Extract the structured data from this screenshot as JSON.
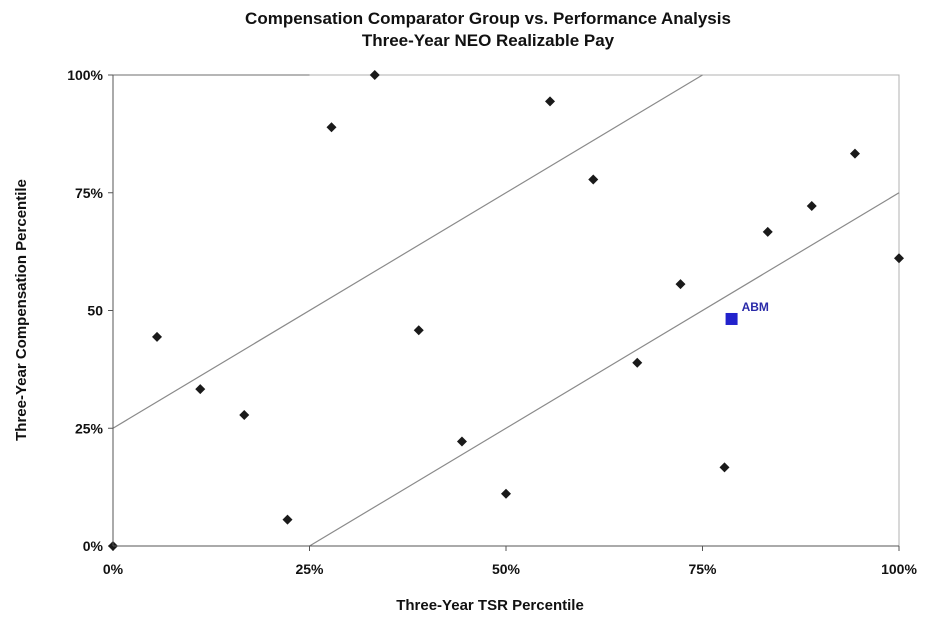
{
  "chart_data": {
    "type": "scatter",
    "title": "Compensation Comparator Group vs. Performance Analysis",
    "subtitle": "Three-Year NEO Realizable  Pay",
    "xlabel": "Three-Year TSR Percentile",
    "ylabel": "Three-Year Compensation Percentile",
    "xlim": [
      0,
      100
    ],
    "ylim": [
      0,
      100
    ],
    "x_ticks": [
      {
        "value": 0,
        "label": "0%"
      },
      {
        "value": 25,
        "label": "25%"
      },
      {
        "value": 50,
        "label": "50%"
      },
      {
        "value": 75,
        "label": "75%"
      },
      {
        "value": 100,
        "label": "100%"
      }
    ],
    "y_ticks": [
      {
        "value": 0,
        "label": "0%"
      },
      {
        "value": 25,
        "label": "25%"
      },
      {
        "value": 50,
        "label": "50"
      },
      {
        "value": 75,
        "label": "75%"
      },
      {
        "value": 100,
        "label": "100%"
      }
    ],
    "grid": false,
    "series": [
      {
        "marker": "diamond",
        "color": "#1a1a1a",
        "points": [
          {
            "x": 0,
            "y": 0
          },
          {
            "x": 5.6,
            "y": 44.4
          },
          {
            "x": 11.1,
            "y": 33.3
          },
          {
            "x": 16.7,
            "y": 27.8
          },
          {
            "x": 22.2,
            "y": 5.6
          },
          {
            "x": 27.8,
            "y": 88.9
          },
          {
            "x": 33.3,
            "y": 100
          },
          {
            "x": 38.9,
            "y": 45.8
          },
          {
            "x": 44.4,
            "y": 22.2
          },
          {
            "x": 50,
            "y": 11.1
          },
          {
            "x": 55.6,
            "y": 94.4
          },
          {
            "x": 61.1,
            "y": 77.8
          },
          {
            "x": 66.7,
            "y": 38.9
          },
          {
            "x": 72.2,
            "y": 55.6
          },
          {
            "x": 77.8,
            "y": 16.7
          },
          {
            "x": 83.3,
            "y": 66.7
          },
          {
            "x": 88.9,
            "y": 72.2
          },
          {
            "x": 94.4,
            "y": 83.3
          },
          {
            "x": 100,
            "y": 61.1
          }
        ]
      },
      {
        "marker": "square",
        "color": "#2222cc",
        "points": [
          {
            "x": 78.7,
            "y": 48.2,
            "label": "ABM"
          }
        ]
      }
    ],
    "reference_lines": [
      {
        "from": [
          0,
          25
        ],
        "to": [
          75,
          100
        ]
      },
      {
        "from": [
          25,
          0
        ],
        "to": [
          100,
          75
        ]
      },
      {
        "from": [
          0,
          100
        ],
        "to": [
          25,
          100
        ]
      }
    ]
  }
}
